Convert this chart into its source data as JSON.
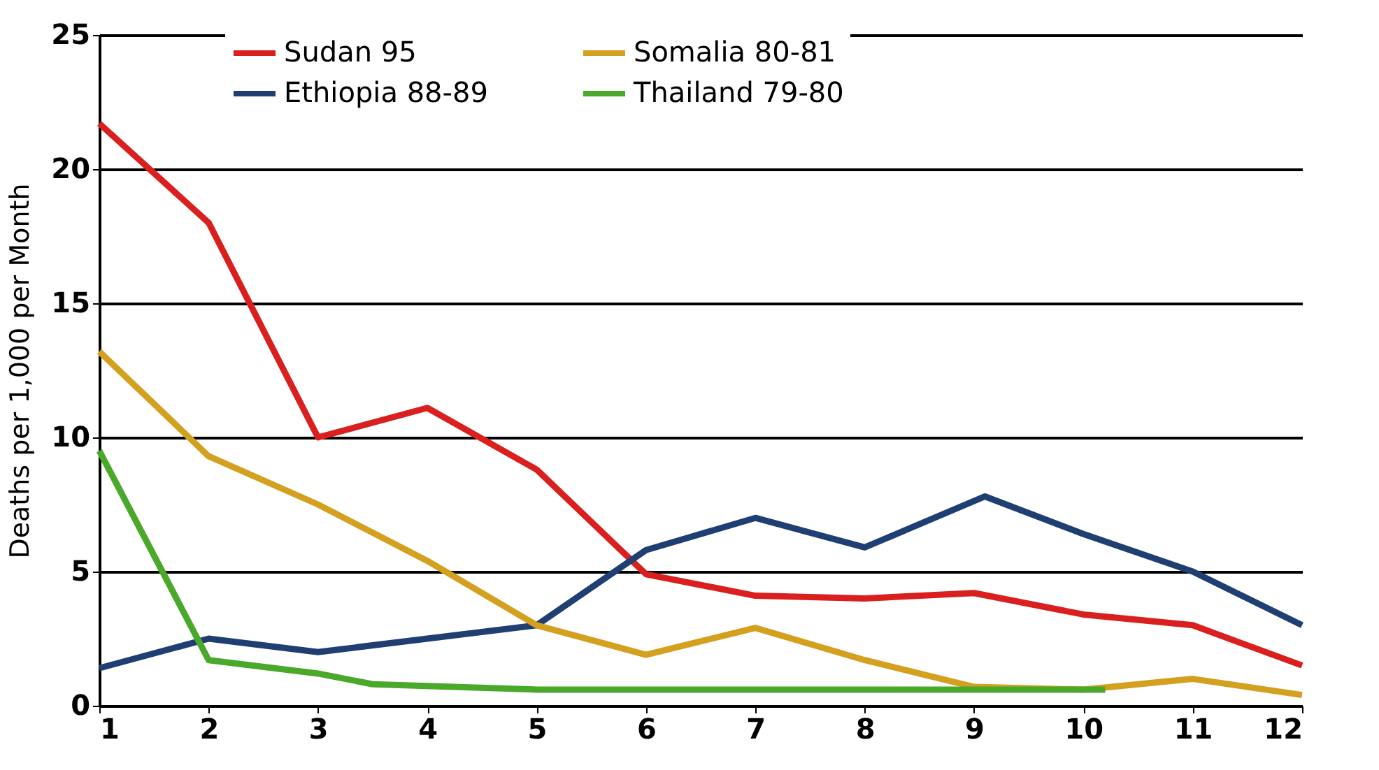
{
  "chart_data": {
    "type": "line",
    "ylabel": "Deaths per 1,000 per Month",
    "xlim": [
      1,
      12
    ],
    "xticks": [
      1,
      2,
      3,
      4,
      5,
      6,
      7,
      8,
      9,
      10,
      11,
      12
    ],
    "ylim": [
      0,
      25
    ],
    "yticks": [
      0,
      5,
      10,
      15,
      20,
      25
    ],
    "grid": "y",
    "legend": "top",
    "line_style": "solid",
    "marker": "none",
    "series": [
      {
        "name": "Sudan 95",
        "color": "#d9201f",
        "x": [
          1,
          2,
          3,
          4,
          5,
          6,
          7,
          8,
          9,
          10,
          11,
          12
        ],
        "values": [
          21.7,
          18,
          10,
          11.1,
          8.8,
          4.9,
          4.1,
          4.0,
          4.2,
          3.4,
          3.0,
          1.5
        ]
      },
      {
        "name": "Ethiopia 88-89",
        "color": "#1f3f73",
        "x": [
          1,
          2,
          3,
          4,
          5,
          6,
          7,
          8,
          9.1,
          10,
          11,
          12
        ],
        "values": [
          1.4,
          2.5,
          2.0,
          2.5,
          3.0,
          5.8,
          7.0,
          5.9,
          7.8,
          6.4,
          5.0,
          3.0
        ]
      },
      {
        "name": "Somalia 80-81",
        "color": "#d4a020",
        "x": [
          1,
          2,
          3,
          4,
          5,
          6,
          7,
          8,
          9,
          10,
          11,
          12
        ],
        "values": [
          13.2,
          9.3,
          7.5,
          5.4,
          3.0,
          1.9,
          2.9,
          1.7,
          0.7,
          0.6,
          1.0,
          0.4
        ]
      },
      {
        "name": "Thailand 79-80",
        "color": "#4aa82a",
        "x": [
          1,
          2,
          3,
          3.5,
          5,
          6,
          7,
          8,
          9,
          10.2
        ],
        "values": [
          9.5,
          1.7,
          1.2,
          0.8,
          0.6,
          0.6,
          0.6,
          0.6,
          0.6,
          0.6
        ]
      }
    ]
  }
}
